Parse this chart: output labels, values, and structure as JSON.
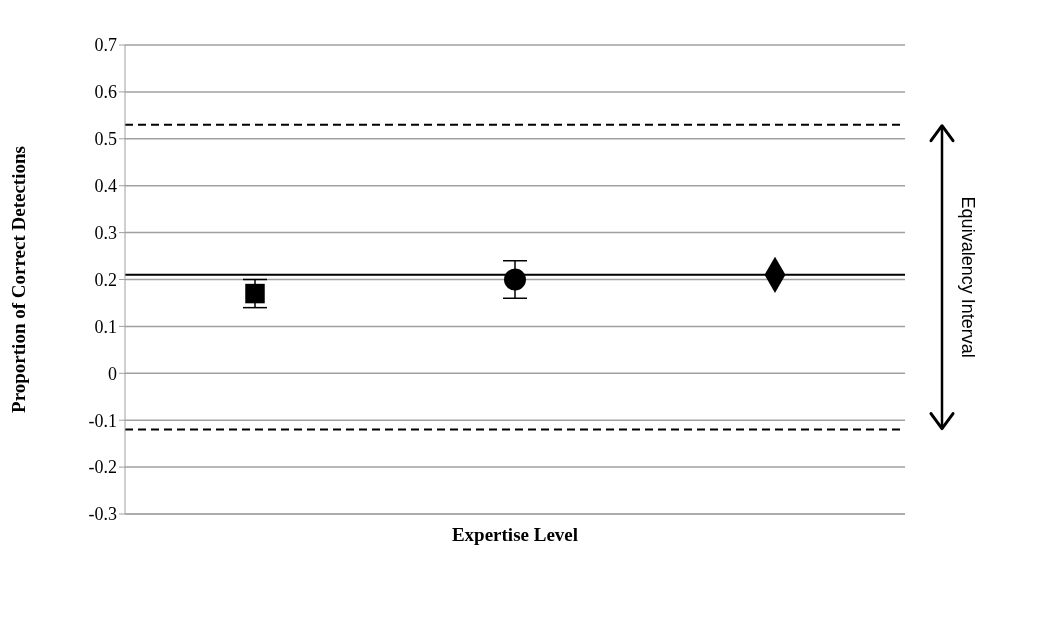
{
  "chart_data": {
    "type": "scatter",
    "xlabel": "Expertise Level",
    "ylabel": "Proportion of Correct Detections",
    "categories": [
      null,
      null,
      null
    ],
    "series": [
      {
        "color": "#000000",
        "marker": "square",
        "values": [
          0.17,
          null,
          null
        ],
        "errors": [
          0.03,
          null,
          null
        ]
      },
      {
        "color": "#000000",
        "marker": "circle",
        "values": [
          null,
          0.2,
          null
        ],
        "errors": [
          null,
          0.04,
          null
        ]
      },
      {
        "color": "#000000",
        "marker": "diamond",
        "values": [
          null,
          null,
          0.21
        ],
        "errors": [
          null,
          null,
          null
        ]
      }
    ],
    "ylim": [
      -0.3,
      0.7
    ],
    "yticks": [
      -0.3,
      -0.2,
      -0.1,
      0,
      0.1,
      0.2,
      0.3,
      0.4,
      0.5,
      0.6,
      0.7
    ],
    "grid": "y",
    "ref_lines": [
      {
        "axis": "y",
        "value": 0.21,
        "color": "#000000",
        "line_style": "solid"
      },
      {
        "axis": "y",
        "value": 0.53,
        "color": "#000000",
        "line_style": "dashed"
      },
      {
        "axis": "y",
        "value": -0.12,
        "color": "#000000",
        "line_style": "dashed"
      }
    ],
    "annotations": [
      "Equivalency Interval"
    ]
  }
}
